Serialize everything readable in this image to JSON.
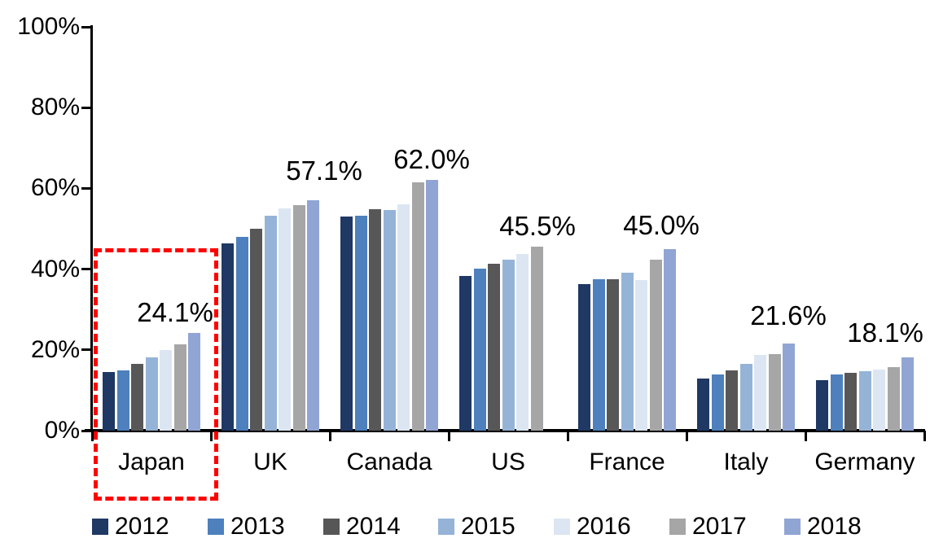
{
  "chart_data": {
    "type": "bar",
    "title": "",
    "categories": [
      "Japan",
      "UK",
      "Canada",
      "US",
      "France",
      "Italy",
      "Germany"
    ],
    "series": [
      {
        "name": "2012",
        "color": "#1F3864",
        "values": [
          14.6,
          46.3,
          53.0,
          38.3,
          36.3,
          13.0,
          12.4
        ]
      },
      {
        "name": "2013",
        "color": "#4D80BD",
        "values": [
          15.0,
          47.9,
          53.3,
          40.2,
          37.5,
          13.9,
          13.9
        ]
      },
      {
        "name": "2014",
        "color": "#575757",
        "values": [
          16.6,
          50.0,
          54.9,
          41.3,
          37.4,
          15.0,
          14.3
        ]
      },
      {
        "name": "2015",
        "color": "#95B3D7",
        "values": [
          18.1,
          53.3,
          54.6,
          42.3,
          39.1,
          16.6,
          14.7
        ]
      },
      {
        "name": "2016",
        "color": "#DCE6F2",
        "values": [
          20.0,
          55.0,
          56.0,
          43.8,
          37.3,
          18.8,
          15.2
        ]
      },
      {
        "name": "2017",
        "color": "#A6A6A6",
        "values": [
          21.3,
          55.8,
          61.5,
          45.5,
          42.3,
          19.0,
          15.8
        ]
      },
      {
        "name": "2018",
        "color": "#90A5D3",
        "values": [
          24.1,
          57.1,
          62.0,
          null,
          45.0,
          21.6,
          18.1
        ]
      }
    ],
    "y_ticks": [
      "0%",
      "20%",
      "40%",
      "60%",
      "80%",
      "100%"
    ],
    "y_tick_values": [
      0,
      20,
      40,
      60,
      80,
      100
    ],
    "ylim": [
      0,
      100
    ],
    "grid": false,
    "legend_position": "bottom",
    "annotations": [
      {
        "category": "Japan",
        "text": "24.1%"
      },
      {
        "category": "UK",
        "text": "57.1%"
      },
      {
        "category": "Canada",
        "text": "62.0%"
      },
      {
        "category": "US",
        "text": "45.5%"
      },
      {
        "category": "France",
        "text": "45.0%"
      },
      {
        "category": "Italy",
        "text": "21.6%"
      },
      {
        "category": "Germany",
        "text": "18.1%"
      }
    ],
    "highlight": {
      "target": "Japan",
      "style": "red-dashed-rectangle",
      "color": "#FF0000"
    }
  }
}
